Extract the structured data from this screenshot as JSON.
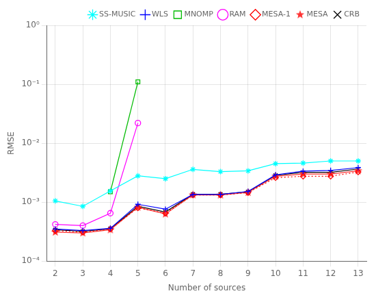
{
  "chart_data": {
    "type": "line",
    "x_label": "Number of sources",
    "y_label": "RMSE",
    "x": [
      2,
      3,
      4,
      5,
      6,
      7,
      8,
      9,
      10,
      11,
      12,
      13
    ],
    "series": [
      {
        "name": "SS-MUSIC",
        "color": "#00FFFF",
        "marker": "asterisk",
        "line_style": "solid",
        "values": [
          0.00105,
          0.00085,
          0.00155,
          0.0028,
          0.0025,
          0.0036,
          0.0033,
          0.0034,
          0.0045,
          0.0046,
          0.005,
          0.005
        ]
      },
      {
        "name": "WLS",
        "color": "#0000FF",
        "marker": "plus",
        "line_style": "solid",
        "values": [
          0.00035,
          0.00033,
          0.00036,
          0.00092,
          0.00076,
          0.00135,
          0.00135,
          0.00152,
          0.0029,
          0.00335,
          0.00345,
          0.00385
        ]
      },
      {
        "name": "MNOMP",
        "color": "#00BB00",
        "marker": "square",
        "line_style": "solid",
        "values": [
          null,
          null,
          0.0015,
          0.11,
          null,
          null,
          null,
          null,
          null,
          null,
          null,
          null
        ]
      },
      {
        "name": "RAM",
        "color": "#FF00FF",
        "marker": "circle",
        "line_style": "solid",
        "values": [
          0.00042,
          0.0004,
          0.00065,
          0.022,
          null,
          null,
          null,
          null,
          null,
          null,
          null,
          null
        ]
      },
      {
        "name": "MESA-1",
        "color": "#FF0000",
        "marker": "diamond",
        "line_style": "dotted",
        "values": [
          0.00033,
          0.00031,
          0.00035,
          0.0008,
          0.00065,
          0.00132,
          0.00132,
          0.00145,
          0.0026,
          0.00275,
          0.00275,
          0.00325
        ]
      },
      {
        "name": "MESA",
        "color": "#FF3333",
        "marker": "star",
        "line_style": "solid",
        "values": [
          0.00031,
          0.0003,
          0.00034,
          0.00082,
          0.00063,
          0.00133,
          0.00132,
          0.00146,
          0.00275,
          0.003,
          0.003,
          0.0034
        ]
      },
      {
        "name": "CRB",
        "color": "#000000",
        "marker": "x",
        "line_style": "solid",
        "values": [
          0.00034,
          0.00032,
          0.000355,
          0.00085,
          0.00068,
          0.00136,
          0.00136,
          0.0015,
          0.00285,
          0.0032,
          0.0032,
          0.00365
        ]
      }
    ],
    "log": "y",
    "xlim": [
      1.7,
      13.3
    ],
    "xticks": [
      2,
      3,
      4,
      5,
      6,
      7,
      8,
      9,
      10,
      11,
      12,
      13
    ],
    "ylim": [
      0.0001,
      1
    ],
    "yticks": [
      {
        "value": 0.0001,
        "label": "10⁻⁴"
      },
      {
        "value": 0.001,
        "label": "10⁻³"
      },
      {
        "value": 0.01,
        "label": "10⁻²"
      },
      {
        "value": 0.1,
        "label": "10⁻¹"
      },
      {
        "value": 1,
        "label": "10⁰"
      }
    ],
    "grid": true,
    "legend": "upper right"
  }
}
